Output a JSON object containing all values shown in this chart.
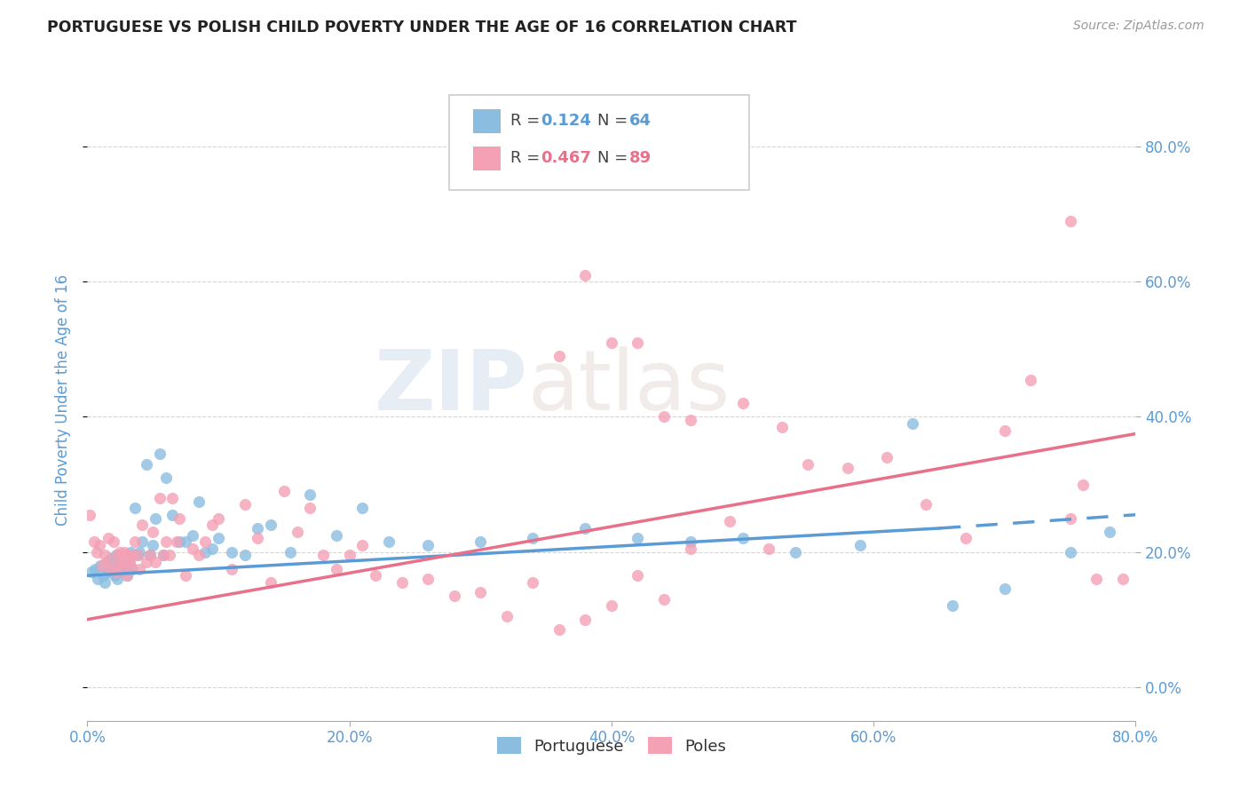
{
  "title": "PORTUGUESE VS POLISH CHILD POVERTY UNDER THE AGE OF 16 CORRELATION CHART",
  "source": "Source: ZipAtlas.com",
  "ylabel": "Child Poverty Under the Age of 16",
  "xlim": [
    0.0,
    0.8
  ],
  "ylim": [
    -0.05,
    0.9
  ],
  "yticks": [
    0.0,
    0.2,
    0.4,
    0.6,
    0.8
  ],
  "xticks": [
    0.0,
    0.2,
    0.4,
    0.6,
    0.8
  ],
  "xtick_labels": [
    "0.0%",
    "20.0%",
    "40.0%",
    "60.0%",
    "80.0%"
  ],
  "ytick_labels": [
    "0.0%",
    "20.0%",
    "40.0%",
    "60.0%",
    "80.0%"
  ],
  "portuguese_color": "#8BBDE0",
  "poles_color": "#F4A0B5",
  "portuguese_trend_color": "#5B9BD5",
  "poles_trend_color": "#E8708A",
  "title_color": "#222222",
  "axis_label_color": "#5B9BD5",
  "tick_label_color": "#5B9BD5",
  "background_color": "#FFFFFF",
  "grid_color": "#CCCCCC",
  "legend_r_portuguese": "0.124",
  "legend_n_portuguese": "64",
  "legend_r_poles": "0.467",
  "legend_n_poles": "89",
  "portuguese_x": [
    0.003,
    0.006,
    0.008,
    0.01,
    0.012,
    0.013,
    0.015,
    0.016,
    0.018,
    0.02,
    0.021,
    0.022,
    0.023,
    0.024,
    0.025,
    0.026,
    0.028,
    0.03,
    0.031,
    0.032,
    0.033,
    0.034,
    0.036,
    0.038,
    0.04,
    0.042,
    0.045,
    0.048,
    0.05,
    0.052,
    0.055,
    0.058,
    0.06,
    0.065,
    0.07,
    0.075,
    0.08,
    0.085,
    0.09,
    0.095,
    0.1,
    0.11,
    0.12,
    0.13,
    0.14,
    0.155,
    0.17,
    0.19,
    0.21,
    0.23,
    0.26,
    0.3,
    0.34,
    0.38,
    0.42,
    0.46,
    0.5,
    0.54,
    0.59,
    0.63,
    0.66,
    0.7,
    0.75,
    0.78
  ],
  "portuguese_y": [
    0.17,
    0.175,
    0.16,
    0.18,
    0.165,
    0.155,
    0.185,
    0.17,
    0.19,
    0.175,
    0.165,
    0.195,
    0.16,
    0.185,
    0.17,
    0.18,
    0.175,
    0.165,
    0.185,
    0.175,
    0.2,
    0.175,
    0.265,
    0.195,
    0.2,
    0.215,
    0.33,
    0.195,
    0.21,
    0.25,
    0.345,
    0.195,
    0.31,
    0.255,
    0.215,
    0.215,
    0.225,
    0.275,
    0.2,
    0.205,
    0.22,
    0.2,
    0.195,
    0.235,
    0.24,
    0.2,
    0.285,
    0.225,
    0.265,
    0.215,
    0.21,
    0.215,
    0.22,
    0.235,
    0.22,
    0.215,
    0.22,
    0.2,
    0.21,
    0.39,
    0.12,
    0.145,
    0.2,
    0.23
  ],
  "poles_x": [
    0.002,
    0.005,
    0.007,
    0.009,
    0.011,
    0.013,
    0.015,
    0.016,
    0.018,
    0.02,
    0.022,
    0.023,
    0.024,
    0.025,
    0.026,
    0.027,
    0.028,
    0.03,
    0.031,
    0.032,
    0.033,
    0.034,
    0.036,
    0.038,
    0.04,
    0.042,
    0.045,
    0.048,
    0.05,
    0.052,
    0.055,
    0.058,
    0.06,
    0.063,
    0.065,
    0.068,
    0.07,
    0.075,
    0.08,
    0.085,
    0.09,
    0.095,
    0.1,
    0.11,
    0.12,
    0.13,
    0.14,
    0.15,
    0.16,
    0.17,
    0.18,
    0.19,
    0.2,
    0.21,
    0.22,
    0.24,
    0.26,
    0.28,
    0.3,
    0.32,
    0.34,
    0.36,
    0.38,
    0.4,
    0.42,
    0.44,
    0.46,
    0.49,
    0.52,
    0.55,
    0.58,
    0.61,
    0.64,
    0.67,
    0.7,
    0.72,
    0.75,
    0.76,
    0.77,
    0.79,
    0.36,
    0.38,
    0.4,
    0.42,
    0.44,
    0.46,
    0.5,
    0.53,
    0.75
  ],
  "poles_y": [
    0.255,
    0.215,
    0.2,
    0.21,
    0.18,
    0.195,
    0.185,
    0.22,
    0.175,
    0.215,
    0.17,
    0.195,
    0.185,
    0.2,
    0.175,
    0.185,
    0.2,
    0.165,
    0.195,
    0.185,
    0.18,
    0.195,
    0.215,
    0.195,
    0.175,
    0.24,
    0.185,
    0.195,
    0.23,
    0.185,
    0.28,
    0.195,
    0.215,
    0.195,
    0.28,
    0.215,
    0.25,
    0.165,
    0.205,
    0.195,
    0.215,
    0.24,
    0.25,
    0.175,
    0.27,
    0.22,
    0.155,
    0.29,
    0.23,
    0.265,
    0.195,
    0.175,
    0.195,
    0.21,
    0.165,
    0.155,
    0.16,
    0.135,
    0.14,
    0.105,
    0.155,
    0.085,
    0.1,
    0.12,
    0.165,
    0.13,
    0.205,
    0.245,
    0.205,
    0.33,
    0.325,
    0.34,
    0.27,
    0.22,
    0.38,
    0.455,
    0.25,
    0.3,
    0.16,
    0.16,
    0.49,
    0.61,
    0.51,
    0.51,
    0.4,
    0.395,
    0.42,
    0.385,
    0.69
  ]
}
